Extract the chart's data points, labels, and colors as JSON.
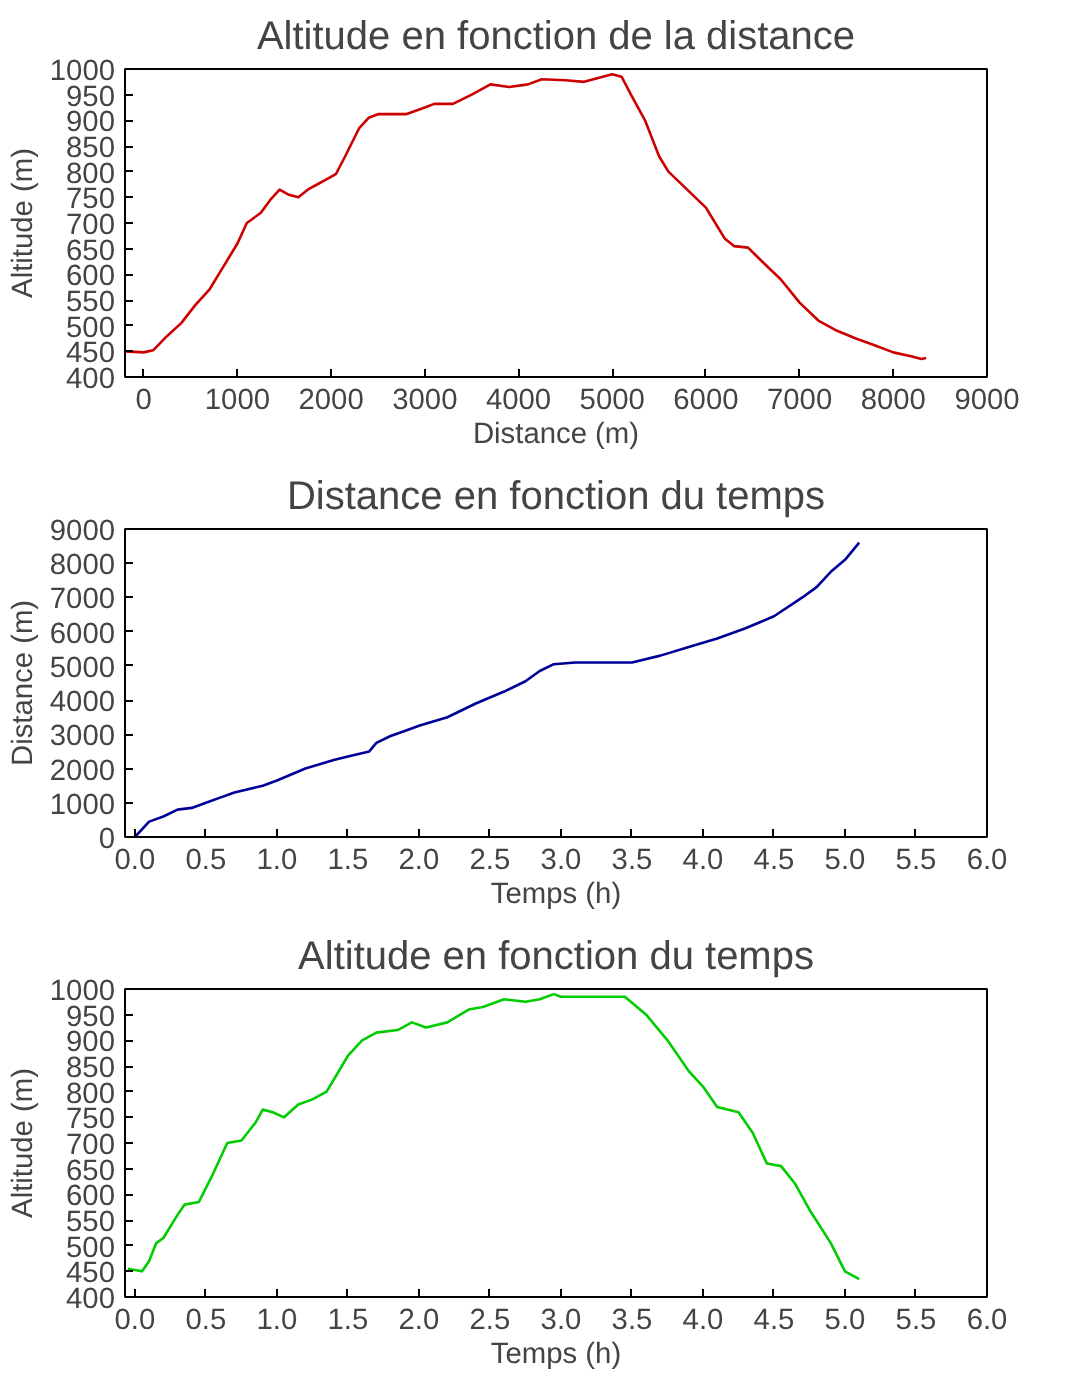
{
  "chart_data": [
    {
      "type": "line",
      "title": "Altitude en fonction de la distance",
      "xlabel": "Distance (m)",
      "ylabel": "Altitude (m)",
      "xlim": [
        -200,
        9000
      ],
      "ylim": [
        400,
        1000
      ],
      "xticks": [
        0,
        1000,
        2000,
        3000,
        4000,
        5000,
        6000,
        7000,
        8000,
        9000
      ],
      "yticks": [
        400,
        450,
        500,
        550,
        600,
        650,
        700,
        750,
        800,
        850,
        900,
        950,
        1000
      ],
      "series": [
        {
          "color": "#cc0000",
          "x": [
            -200,
            0,
            100,
            250,
            400,
            550,
            700,
            850,
            1000,
            1100,
            1250,
            1350,
            1450,
            1550,
            1650,
            1750,
            1850,
            1950,
            2050,
            2150,
            2300,
            2400,
            2500,
            2800,
            3000,
            3100,
            3300,
            3500,
            3700,
            3900,
            4100,
            4250,
            4500,
            4700,
            4900,
            5000,
            5100,
            5200,
            5350,
            5500,
            5600,
            5800,
            6000,
            6100,
            6200,
            6300,
            6450,
            6600,
            6800,
            7000,
            7200,
            7400,
            7600,
            7800,
            8000,
            8200,
            8300,
            8350
          ],
          "values": [
            450,
            448,
            452,
            480,
            505,
            540,
            570,
            615,
            660,
            700,
            720,
            745,
            765,
            755,
            750,
            765,
            775,
            785,
            795,
            830,
            885,
            905,
            912,
            912,
            925,
            932,
            932,
            950,
            970,
            965,
            970,
            980,
            978,
            975,
            985,
            990,
            985,
            950,
            900,
            830,
            800,
            765,
            730,
            700,
            670,
            655,
            652,
            625,
            590,
            545,
            510,
            490,
            475,
            462,
            448,
            440,
            435,
            437
          ]
        }
      ]
    },
    {
      "type": "line",
      "title": "Distance en fonction du temps",
      "xlabel": "Temps (h)",
      "ylabel": "Distance (m)",
      "xlim": [
        -0.07,
        6
      ],
      "ylim": [
        0,
        9000
      ],
      "xticks": [
        {
          "value": 0,
          "label": "0.0"
        },
        0.5,
        {
          "value": 1,
          "label": "1.0"
        },
        1.5,
        {
          "value": 2,
          "label": "2.0"
        },
        2.5,
        {
          "value": 3,
          "label": "3.0"
        },
        3.5,
        {
          "value": 4,
          "label": "4.0"
        },
        4.5,
        {
          "value": 5,
          "label": "5.0"
        },
        5.5,
        {
          "value": 6,
          "label": "6.0"
        }
      ],
      "yticks": [
        0,
        1000,
        2000,
        3000,
        4000,
        5000,
        6000,
        7000,
        8000,
        9000
      ],
      "series": [
        {
          "color": "#000099",
          "x": [
            0,
            0.1,
            0.2,
            0.3,
            0.4,
            0.5,
            0.6,
            0.7,
            0.9,
            1.0,
            1.2,
            1.4,
            1.5,
            1.65,
            1.7,
            1.8,
            1.9,
            2.0,
            2.2,
            2.4,
            2.6,
            2.75,
            2.85,
            2.95,
            3.1,
            3.5,
            3.7,
            3.9,
            4.1,
            4.3,
            4.5,
            4.7,
            4.8,
            4.9,
            5.0,
            5.1
          ],
          "values": [
            0,
            450,
            600,
            800,
            850,
            1000,
            1150,
            1300,
            1500,
            1650,
            2000,
            2250,
            2350,
            2500,
            2750,
            2950,
            3100,
            3250,
            3500,
            3900,
            4250,
            4550,
            4850,
            5050,
            5100,
            5100,
            5300,
            5550,
            5800,
            6100,
            6450,
            7000,
            7300,
            7750,
            8100,
            8600
          ]
        }
      ]
    },
    {
      "type": "line",
      "title": "Altitude en fonction du temps",
      "xlabel": "Temps (h)",
      "ylabel": "Altitude (m)",
      "xlim": [
        -0.07,
        6
      ],
      "ylim": [
        400,
        1000
      ],
      "xticks": [
        {
          "value": 0,
          "label": "0.0"
        },
        0.5,
        {
          "value": 1,
          "label": "1.0"
        },
        1.5,
        {
          "value": 2,
          "label": "2.0"
        },
        2.5,
        {
          "value": 3,
          "label": "3.0"
        },
        3.5,
        {
          "value": 4,
          "label": "4.0"
        },
        4.5,
        {
          "value": 5,
          "label": "5.0"
        },
        5.5,
        {
          "value": 6,
          "label": "6.0"
        }
      ],
      "yticks": [
        400,
        450,
        500,
        550,
        600,
        650,
        700,
        750,
        800,
        850,
        900,
        950,
        1000
      ],
      "series": [
        {
          "color": "#00cc00",
          "x": [
            -0.05,
            0.05,
            0.1,
            0.15,
            0.2,
            0.3,
            0.35,
            0.45,
            0.55,
            0.65,
            0.75,
            0.85,
            0.9,
            0.97,
            1.05,
            1.15,
            1.25,
            1.35,
            1.5,
            1.6,
            1.7,
            1.85,
            1.95,
            2.05,
            2.2,
            2.35,
            2.45,
            2.6,
            2.75,
            2.85,
            2.95,
            3.0,
            3.45,
            3.6,
            3.75,
            3.9,
            4.0,
            4.1,
            4.25,
            4.35,
            4.45,
            4.55,
            4.65,
            4.75,
            4.9,
            5.0,
            5.1
          ],
          "values": [
            455,
            450,
            470,
            505,
            515,
            560,
            580,
            585,
            640,
            700,
            705,
            740,
            765,
            760,
            750,
            775,
            785,
            800,
            870,
            900,
            915,
            920,
            935,
            925,
            935,
            960,
            965,
            980,
            975,
            980,
            990,
            985,
            985,
            950,
            900,
            840,
            810,
            770,
            760,
            720,
            660,
            655,
            620,
            570,
            505,
            450,
            435
          ]
        }
      ]
    }
  ]
}
